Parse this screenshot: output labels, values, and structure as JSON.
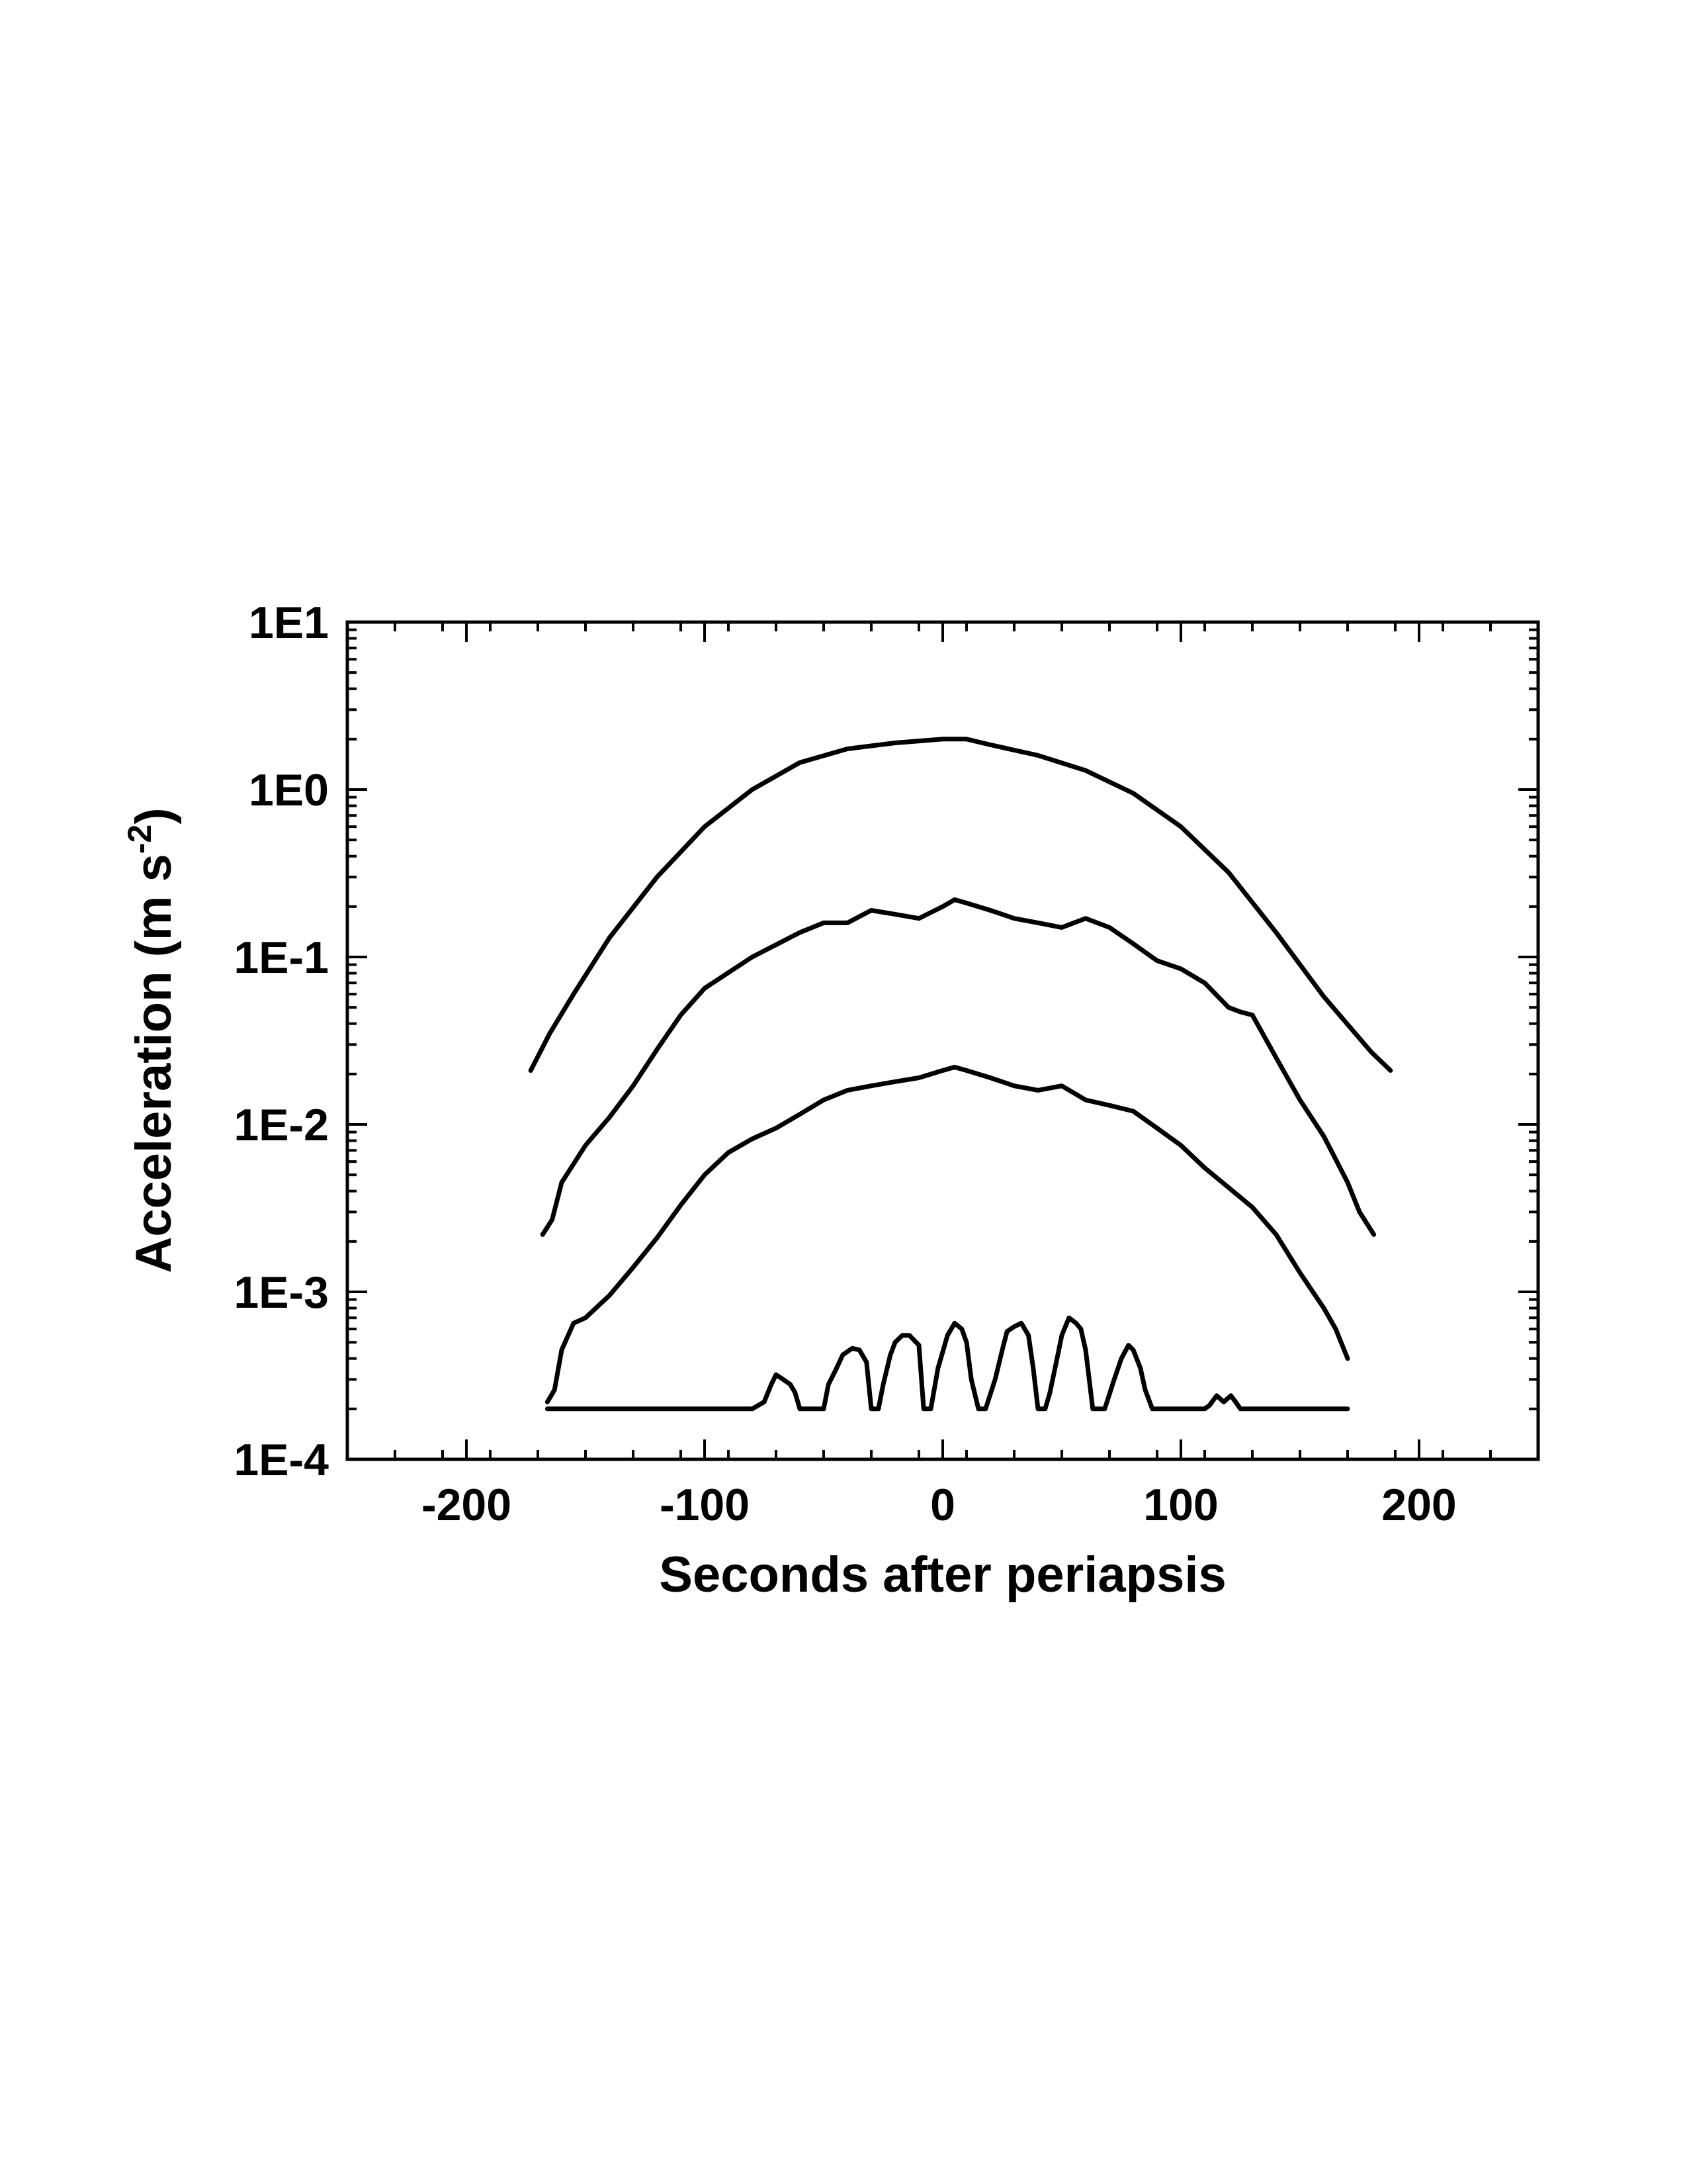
{
  "chart_data": {
    "type": "line",
    "title": "",
    "xlabel": "Seconds after periapsis",
    "ylabel_main": "Acceleration (m s",
    "ylabel_sup": "-2",
    "ylabel_close": ")",
    "xlim": [
      -250,
      250
    ],
    "ylim": [
      0.0001,
      10
    ],
    "y_scale": "log",
    "x_ticks": [
      -200,
      -100,
      0,
      100,
      200
    ],
    "x_tick_labels": [
      "-200",
      "-100",
      "0",
      "100",
      "200"
    ],
    "y_ticks": [
      0.0001,
      0.001,
      0.01,
      0.1,
      1,
      10
    ],
    "y_tick_labels": [
      "1E-4",
      "1E-3",
      "1E-2",
      "1E-1",
      "1E0",
      "1E1"
    ],
    "grid": false,
    "color": "#000000",
    "series": [
      {
        "x": [
          -173,
          -165,
          -155,
          -140,
          -120,
          -100,
          -80,
          -60,
          -40,
          -20,
          0,
          10,
          20,
          40,
          60,
          80,
          100,
          120,
          140,
          160,
          180,
          188
        ],
        "y": [
          0.021,
          0.035,
          0.06,
          0.13,
          0.3,
          0.6,
          1.0,
          1.45,
          1.75,
          1.9,
          2.0,
          2.0,
          1.85,
          1.6,
          1.3,
          0.95,
          0.6,
          0.32,
          0.14,
          0.058,
          0.027,
          0.021
        ]
      },
      {
        "x": [
          -168,
          -164,
          -160,
          -150,
          -140,
          -130,
          -120,
          -110,
          -100,
          -80,
          -60,
          -50,
          -40,
          -30,
          -20,
          -10,
          0,
          5,
          10,
          20,
          30,
          40,
          50,
          60,
          70,
          80,
          90,
          100,
          110,
          120,
          125,
          130,
          140,
          150,
          160,
          170,
          175,
          181
        ],
        "y": [
          0.0022,
          0.0027,
          0.0045,
          0.0075,
          0.011,
          0.017,
          0.028,
          0.045,
          0.065,
          0.1,
          0.14,
          0.16,
          0.16,
          0.19,
          0.18,
          0.17,
          0.2,
          0.22,
          0.21,
          0.19,
          0.17,
          0.16,
          0.15,
          0.17,
          0.15,
          0.12,
          0.095,
          0.085,
          0.07,
          0.05,
          0.047,
          0.045,
          0.025,
          0.014,
          0.0085,
          0.0045,
          0.003,
          0.0022
        ]
      },
      {
        "x": [
          -166,
          -163,
          -160,
          -155,
          -150,
          -140,
          -130,
          -120,
          -110,
          -100,
          -90,
          -80,
          -70,
          -60,
          -50,
          -40,
          -30,
          -20,
          -10,
          0,
          5,
          10,
          20,
          30,
          40,
          50,
          60,
          70,
          80,
          90,
          100,
          110,
          120,
          130,
          140,
          150,
          160,
          165,
          170
        ],
        "y": [
          0.00022,
          0.00026,
          0.00045,
          0.00065,
          0.0007,
          0.00095,
          0.0014,
          0.0021,
          0.0033,
          0.005,
          0.0068,
          0.0082,
          0.0095,
          0.0115,
          0.014,
          0.016,
          0.017,
          0.018,
          0.019,
          0.021,
          0.022,
          0.021,
          0.019,
          0.017,
          0.016,
          0.017,
          0.014,
          0.013,
          0.012,
          0.0095,
          0.0075,
          0.0055,
          0.0042,
          0.0032,
          0.0022,
          0.0013,
          0.0008,
          0.0006,
          0.0004
        ]
      },
      {
        "x": [
          -166,
          -160,
          -120,
          -80,
          -75,
          -72,
          -70,
          -67,
          -64,
          -62,
          -60,
          -57,
          -55,
          -50,
          -48,
          -45,
          -42,
          -38,
          -35,
          -32,
          -30,
          -27,
          -25,
          -22,
          -20,
          -17,
          -14,
          -10,
          -8,
          -5,
          -2,
          2,
          5,
          8,
          10,
          12,
          15,
          18,
          22,
          25,
          27,
          30,
          33,
          36,
          38,
          40,
          43,
          45,
          48,
          50,
          53,
          56,
          58,
          60,
          63,
          65,
          68,
          72,
          75,
          78,
          80,
          83,
          85,
          88,
          92,
          95,
          110,
          112,
          115,
          118,
          121,
          123,
          125,
          128,
          140,
          170
        ],
        "y": [
          0.0002,
          0.0002,
          0.0002,
          0.0002,
          0.00022,
          0.00028,
          0.00032,
          0.0003,
          0.00028,
          0.00025,
          0.0002,
          0.0002,
          0.0002,
          0.0002,
          0.00028,
          0.00034,
          0.00042,
          0.00046,
          0.00045,
          0.00038,
          0.0002,
          0.0002,
          0.00028,
          0.00042,
          0.0005,
          0.00055,
          0.00055,
          0.00048,
          0.0002,
          0.0002,
          0.00035,
          0.00055,
          0.00065,
          0.0006,
          0.0005,
          0.0003,
          0.0002,
          0.0002,
          0.0003,
          0.00045,
          0.00058,
          0.00062,
          0.00065,
          0.00055,
          0.00035,
          0.0002,
          0.0002,
          0.00025,
          0.0004,
          0.00055,
          0.0007,
          0.00065,
          0.0006,
          0.00045,
          0.0002,
          0.0002,
          0.0002,
          0.0003,
          0.0004,
          0.00048,
          0.00045,
          0.00035,
          0.00026,
          0.0002,
          0.0002,
          0.0002,
          0.0002,
          0.00021,
          0.00024,
          0.00022,
          0.00024,
          0.00022,
          0.0002,
          0.0002,
          0.0002,
          0.0002
        ]
      }
    ]
  }
}
